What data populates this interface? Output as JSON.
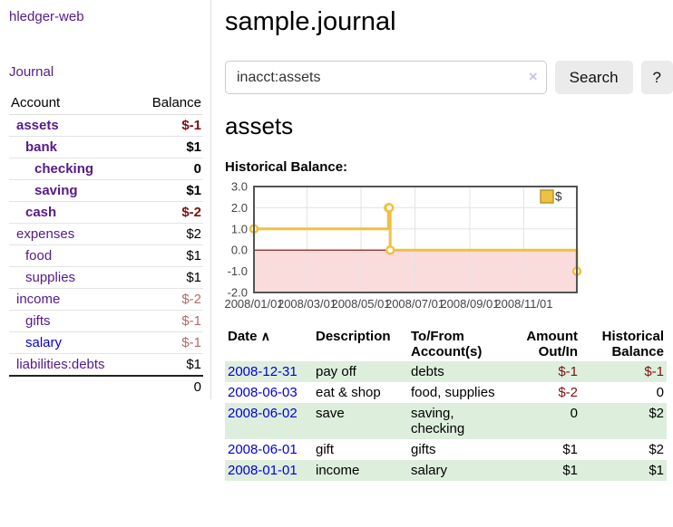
{
  "app": {
    "brand": "hledger-web",
    "nav_journal": "Journal"
  },
  "sidebar": {
    "header": {
      "account": "Account",
      "balance": "Balance"
    },
    "accounts": [
      {
        "name": "assets",
        "indent": 1,
        "balance": "$-1",
        "bold": true,
        "negative": true
      },
      {
        "name": "bank",
        "indent": 2,
        "balance": "$1",
        "bold": true,
        "negative": false
      },
      {
        "name": "checking",
        "indent": 3,
        "balance": "0",
        "bold": true,
        "negative": false
      },
      {
        "name": "saving",
        "indent": 3,
        "balance": "$1",
        "bold": true,
        "negative": false
      },
      {
        "name": "cash",
        "indent": 2,
        "balance": "$-2",
        "bold": true,
        "negative": true
      },
      {
        "name": "expenses",
        "indent": 1,
        "balance": "$2",
        "bold": false,
        "negative": false
      },
      {
        "name": "food",
        "indent": 2,
        "balance": "$1",
        "bold": false,
        "negative": false
      },
      {
        "name": "supplies",
        "indent": 2,
        "balance": "$1",
        "bold": false,
        "negative": false
      },
      {
        "name": "income",
        "indent": 1,
        "balance": "$-2",
        "bold": false,
        "negative": true
      },
      {
        "name": "gifts",
        "indent": 2,
        "balance": "$-1",
        "bold": false,
        "negative": true
      },
      {
        "name": "salary",
        "indent": 2,
        "balance": "$-1",
        "bold": false,
        "negative": true,
        "link": "blue"
      },
      {
        "name": "liabilities:debts",
        "indent": 1,
        "balance": "$1",
        "bold": false,
        "negative": false
      }
    ],
    "total": "0"
  },
  "header": {
    "title": "sample.journal"
  },
  "search": {
    "value": "inacct:assets",
    "clear_icon": "×",
    "button_label": "Search",
    "help_label": "?"
  },
  "account_page": {
    "heading": "assets",
    "chart_label": "Historical Balance:"
  },
  "chart_data": {
    "type": "line",
    "step": true,
    "title": "Historical Balance",
    "series": [
      {
        "name": "$",
        "color": "#edc240",
        "points": [
          [
            "2008-01-01",
            1
          ],
          [
            "2008-06-01",
            2
          ],
          [
            "2008-06-02",
            2
          ],
          [
            "2008-06-03",
            0
          ],
          [
            "2008-12-31",
            -1
          ]
        ]
      }
    ],
    "x_range": [
      "2008-01-01",
      "2008-12-31"
    ],
    "x_ticks": [
      "2008/01/01",
      "2008/03/01",
      "2008/05/01",
      "2008/07/01",
      "2008/09/01",
      "2008/11/01"
    ],
    "y_ticks": [
      "3.0",
      "2.0",
      "1.0",
      "0.0",
      "-1.0",
      "-2.0"
    ],
    "ylim": [
      -2,
      3
    ],
    "grid": true,
    "negative_region_shaded": true,
    "legend_position": "top-right",
    "legend_label": "$"
  },
  "register": {
    "sort_icon": "∧",
    "columns": [
      "Date",
      "Description",
      "To/From\nAccount(s)",
      "Amount\nOut/In",
      "Historical\nBalance"
    ],
    "rows": [
      {
        "date": "2008-12-31",
        "description": "pay off",
        "to_from": "debts",
        "amount": "$-1",
        "amount_negative": true,
        "balance": "$-1",
        "balance_negative": true
      },
      {
        "date": "2008-06-03",
        "description": "eat & shop",
        "to_from": "food, supplies",
        "amount": "$-2",
        "amount_negative": true,
        "balance": "0",
        "balance_negative": false
      },
      {
        "date": "2008-06-02",
        "description": "save",
        "to_from": "saving,\nchecking",
        "amount": "0",
        "amount_negative": false,
        "balance": "$2",
        "balance_negative": false
      },
      {
        "date": "2008-06-01",
        "description": "gift",
        "to_from": "gifts",
        "amount": "$1",
        "amount_negative": false,
        "balance": "$2",
        "balance_negative": false
      },
      {
        "date": "2008-01-01",
        "description": "income",
        "to_from": "salary",
        "amount": "$1",
        "amount_negative": false,
        "balance": "$1",
        "balance_negative": false
      }
    ]
  },
  "colors": {
    "accent_purple": "#551a8b",
    "link_blue": "#0000dd",
    "negative_dark": "#7f1010",
    "negative_light": "#b36a6a",
    "register_stripe_green": "#ddeedd",
    "chart_line_gold": "#edc240",
    "chart_negative_region_pink": "#fbdcdc",
    "chart_zero_line_red": "#8b0000"
  }
}
